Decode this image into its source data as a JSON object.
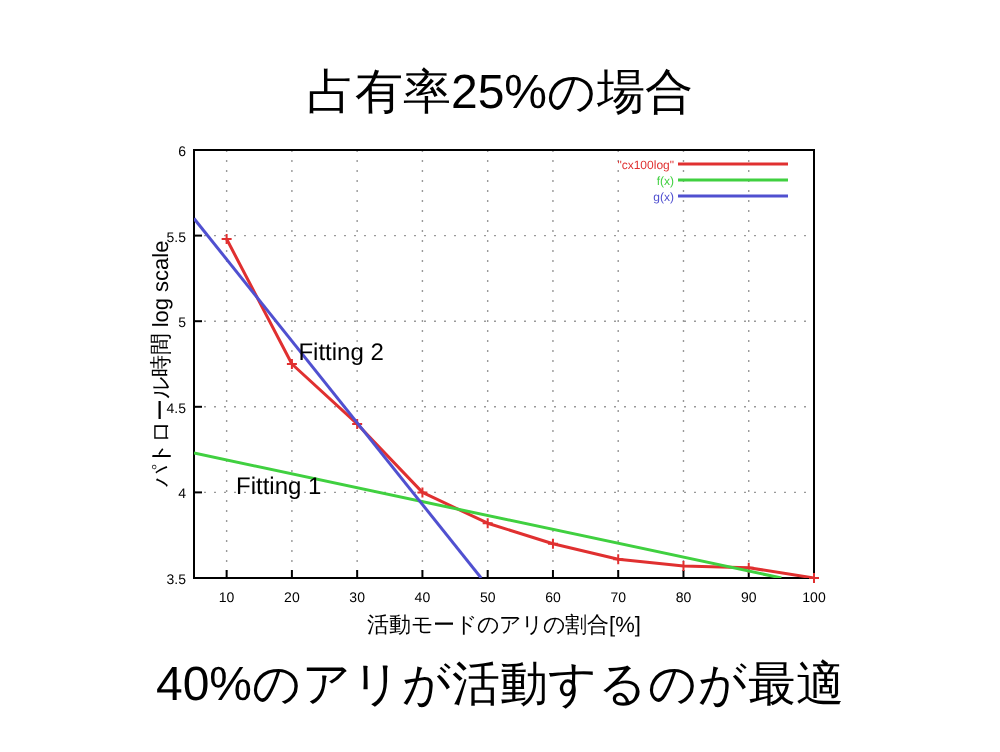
{
  "chart_data": {
    "type": "line",
    "title": "占有率25%の場合",
    "xlabel": "活動モードのアリの割合[%]",
    "ylabel": "パトロール時間 log scale",
    "xlim": [
      5,
      100
    ],
    "xticks": [
      10,
      20,
      30,
      40,
      50,
      60,
      70,
      80,
      90,
      100
    ],
    "ylim": [
      3.5,
      6
    ],
    "yticks": [
      3.5,
      4,
      4.5,
      5,
      5.5,
      6
    ],
    "grid": true,
    "legend": "top right",
    "series": [
      {
        "name": "\"cx100log\"",
        "color": "#e03030",
        "marker": "cross",
        "x": [
          10,
          20,
          30,
          40,
          50,
          60,
          70,
          80,
          90,
          100
        ],
        "values": [
          5.48,
          4.75,
          4.4,
          4.0,
          3.82,
          3.7,
          3.61,
          3.57,
          3.56,
          3.5
        ]
      },
      {
        "name": "f(x)",
        "color": "#40d040",
        "marker": "none",
        "x": [
          5,
          95
        ],
        "values": [
          4.23,
          3.5
        ]
      },
      {
        "name": "g(x)",
        "color": "#5050d0",
        "marker": "none",
        "x": [
          5,
          49
        ],
        "values": [
          5.6,
          3.5
        ]
      }
    ],
    "annotations": [
      {
        "text": "Fitting 2",
        "x": 21,
        "y": 4.82
      },
      "Fitting 1",
      "40%のアリが活動するのが最適"
    ]
  }
}
